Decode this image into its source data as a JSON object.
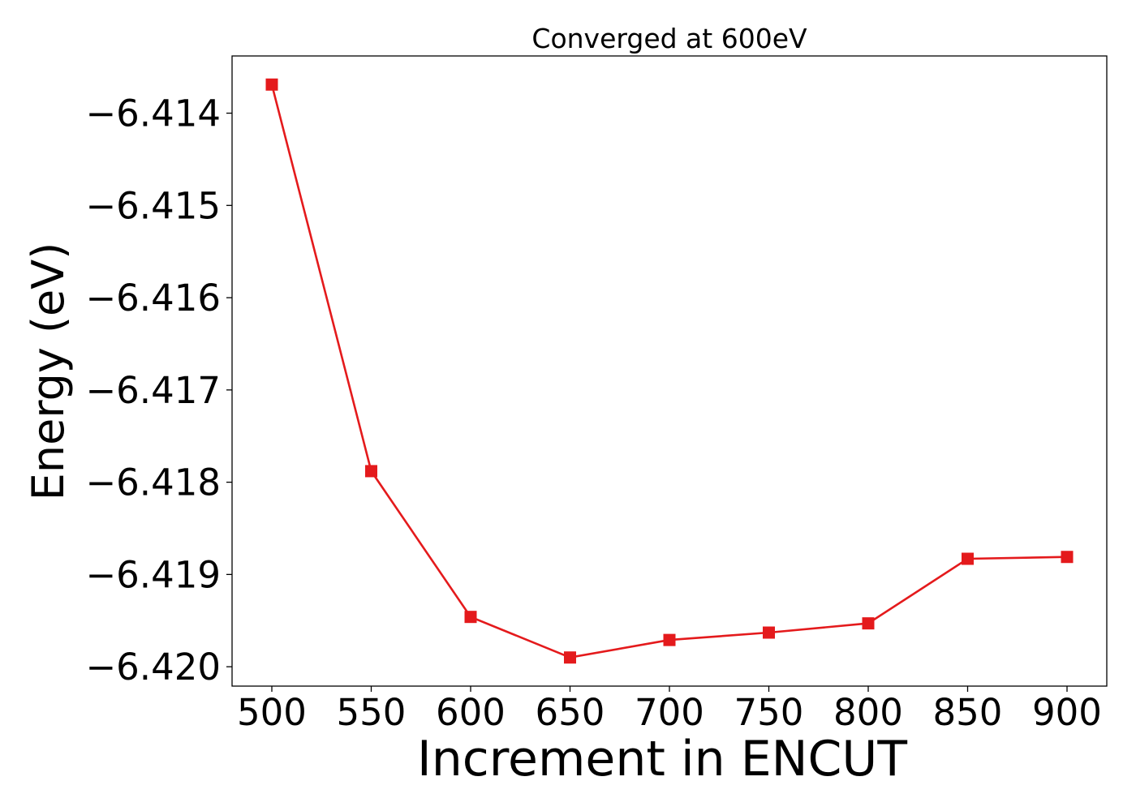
{
  "chart_data": {
    "type": "line",
    "title": "Converged at 600eV",
    "xlabel": "Increment in ENCUT",
    "ylabel": "Energy (eV)",
    "x": [
      500,
      550,
      600,
      650,
      700,
      750,
      800,
      850,
      900
    ],
    "series": [
      {
        "values": [
          -6.41369,
          -6.41788,
          -6.41946,
          -6.4199,
          -6.41971,
          -6.41963,
          -6.41953,
          -6.41883,
          -6.41881
        ],
        "color": "#e41a1c",
        "marker": "square"
      }
    ],
    "xticks": [
      500,
      550,
      600,
      650,
      700,
      750,
      800,
      850,
      900
    ],
    "yticks": [
      -6.414,
      -6.415,
      -6.416,
      -6.417,
      -6.418,
      -6.419,
      -6.42
    ],
    "ytick_labels": [
      "−6.414",
      "−6.415",
      "−6.416",
      "−6.417",
      "−6.418",
      "−6.419",
      "−6.420"
    ],
    "xlim": [
      480,
      920
    ],
    "ylim": [
      -6.42021,
      -6.41338
    ],
    "grid": false,
    "legend": false
  }
}
